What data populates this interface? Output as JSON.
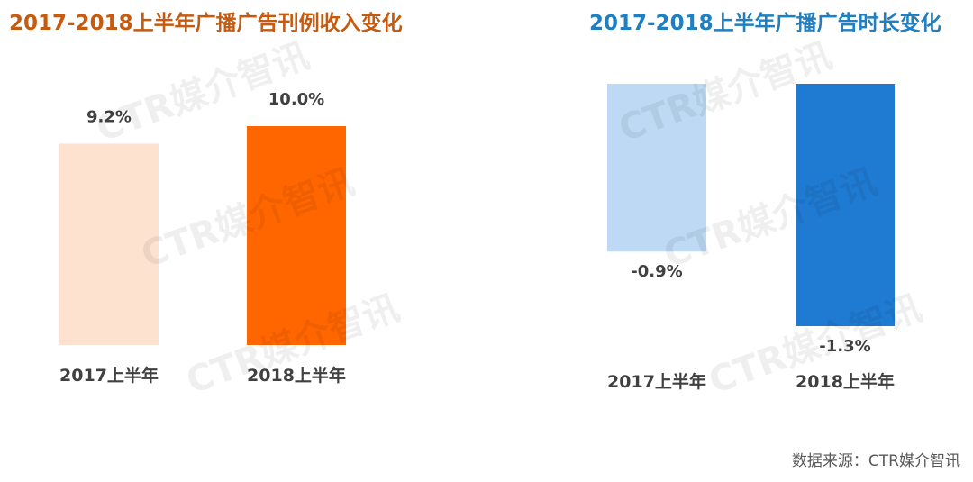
{
  "source_note": "数据来源：CTR媒介智讯",
  "watermark_text": "CTR媒介智讯",
  "chart_data": [
    {
      "type": "bar",
      "title": "2017-2018上半年广播广告刊例收入变化",
      "title_color": "#C55A11",
      "categories": [
        "2017上半年",
        "2018上半年"
      ],
      "values": [
        9.2,
        10.0
      ],
      "value_labels": [
        "9.2%",
        "10.0%"
      ],
      "bar_colors": [
        "#FDE2CF",
        "#FF6600"
      ],
      "unit": "%"
    },
    {
      "type": "bar",
      "title": "2017-2018上半年广播广告时长变化",
      "title_color": "#1F7FC0",
      "categories": [
        "2017上半年",
        "2018上半年"
      ],
      "values": [
        -0.9,
        -1.3
      ],
      "value_labels": [
        "-0.9%",
        "-1.3%"
      ],
      "bar_colors": [
        "#BDD9F4",
        "#1F7AD2"
      ],
      "unit": "%"
    }
  ]
}
